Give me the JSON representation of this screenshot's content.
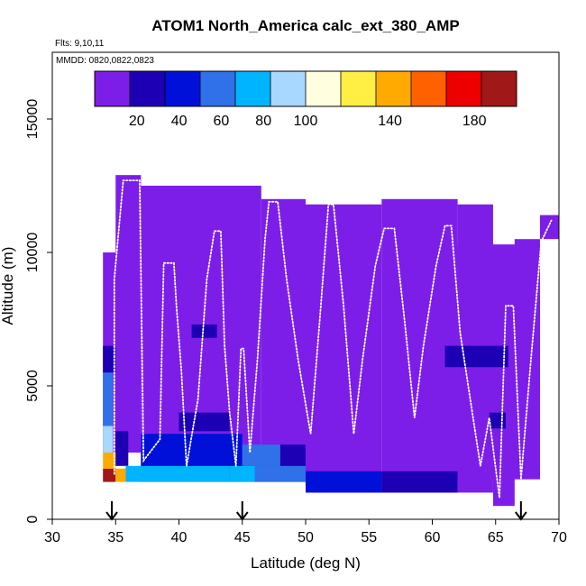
{
  "chart_data": {
    "type": "heatmap",
    "title": "ATOM1 North_America calc_ext_380_AMP",
    "subtitle_flights": "Flts: 9,10,11",
    "subtitle_dates": "MMDD: 0820,0822,0823",
    "xlabel": "Latitude (deg N)",
    "ylabel": "Altitude (m)",
    "xlim": [
      30,
      70
    ],
    "ylim": [
      0,
      17500
    ],
    "x_ticks": [
      30,
      35,
      40,
      45,
      50,
      55,
      60,
      65,
      70
    ],
    "y_ticks": [
      0,
      5000,
      10000,
      15000
    ],
    "colorbar": {
      "range": [
        0,
        200
      ],
      "tick_values": [
        20,
        40,
        60,
        80,
        100,
        140,
        180
      ],
      "colors": [
        "#7d1ee8",
        "#1d00b4",
        "#0010d8",
        "#3070e8",
        "#00b4ff",
        "#a8d8ff",
        "#ffffe0",
        "#ffee44",
        "#ffaa00",
        "#ff6000",
        "#ee0000",
        "#a01818"
      ]
    },
    "arrow_latitudes": [
      34.7,
      45,
      67
    ],
    "cells": [
      {
        "x": [
          34,
          35
        ],
        "y": [
          1400,
          1900
        ],
        "v": 195
      },
      {
        "x": [
          35,
          35.8
        ],
        "y": [
          1400,
          1900
        ],
        "v": 145
      },
      {
        "x": [
          34,
          35
        ],
        "y": [
          1900,
          2500
        ],
        "v": 145
      },
      {
        "x": [
          34,
          34.8
        ],
        "y": [
          2500,
          3500
        ],
        "v": 95
      },
      {
        "x": [
          34,
          34.8
        ],
        "y": [
          3500,
          5500
        ],
        "v": 65
      },
      {
        "x": [
          34,
          35
        ],
        "y": [
          5500,
          6500
        ],
        "v": 22
      },
      {
        "x": [
          35,
          36
        ],
        "y": [
          2000,
          3300
        ],
        "v": 20
      },
      {
        "x": [
          35.8,
          44
        ],
        "y": [
          1400,
          2000
        ],
        "v": 68
      },
      {
        "x": [
          44,
          46
        ],
        "y": [
          1400,
          2000
        ],
        "v": 82
      },
      {
        "x": [
          46,
          50
        ],
        "y": [
          1400,
          2000
        ],
        "v": 55
      },
      {
        "x": [
          50,
          56
        ],
        "y": [
          1000,
          1800
        ],
        "v": 40
      },
      {
        "x": [
          56,
          62
        ],
        "y": [
          1000,
          1800
        ],
        "v": 22
      },
      {
        "x": [
          37,
          45
        ],
        "y": [
          2000,
          3200
        ],
        "v": 48
      },
      {
        "x": [
          45,
          48
        ],
        "y": [
          2000,
          2800
        ],
        "v": 60
      },
      {
        "x": [
          48,
          50
        ],
        "y": [
          2000,
          2800
        ],
        "v": 30
      },
      {
        "x": [
          40,
          44
        ],
        "y": [
          3300,
          4000
        ],
        "v": 30
      },
      {
        "x": [
          41,
          43
        ],
        "y": [
          6800,
          7300
        ],
        "v": 20
      },
      {
        "x": [
          64.5,
          65.8
        ],
        "y": [
          3400,
          4000
        ],
        "v": 20
      },
      {
        "x": [
          61,
          66
        ],
        "y": [
          5700,
          6500
        ],
        "v": 30
      }
    ],
    "footprints": [
      {
        "x": [
          34,
          37
        ],
        "y": [
          2500,
          10000
        ]
      },
      {
        "x": [
          35,
          37
        ],
        "y": [
          10000,
          12900
        ]
      },
      {
        "x": [
          37,
          46.5
        ],
        "y": [
          1400,
          12500
        ]
      },
      {
        "x": [
          46.5,
          50
        ],
        "y": [
          1400,
          12000
        ]
      },
      {
        "x": [
          50,
          56
        ],
        "y": [
          1000,
          11800
        ]
      },
      {
        "x": [
          56,
          62
        ],
        "y": [
          1000,
          12000
        ]
      },
      {
        "x": [
          62,
          64.8
        ],
        "y": [
          1000,
          11800
        ]
      },
      {
        "x": [
          64.8,
          66.5
        ],
        "y": [
          500,
          7500
        ]
      },
      {
        "x": [
          62,
          68.5
        ],
        "y": [
          1500,
          10300
        ]
      },
      {
        "x": [
          66.5,
          68.5
        ],
        "y": [
          1500,
          10500
        ]
      },
      {
        "x": [
          68.5,
          70
        ],
        "y": [
          10500,
          11400
        ]
      }
    ],
    "flight_track": [
      [
        34.9,
        1700
      ],
      [
        34.9,
        9000
      ],
      [
        35.6,
        12700
      ],
      [
        36.9,
        12700
      ],
      [
        37.2,
        2200
      ],
      [
        38.5,
        3000
      ],
      [
        38.8,
        9600
      ],
      [
        39.6,
        9600
      ],
      [
        39.8,
        8000
      ],
      [
        40.2,
        5500
      ],
      [
        40.6,
        2000
      ],
      [
        41.5,
        4500
      ],
      [
        42.2,
        9000
      ],
      [
        42.8,
        10800
      ],
      [
        43.3,
        10800
      ],
      [
        43.6,
        6500
      ],
      [
        44.0,
        4000
      ],
      [
        44.5,
        2000
      ],
      [
        44.9,
        6400
      ],
      [
        45.1,
        6400
      ],
      [
        45.6,
        2500
      ],
      [
        46.2,
        6000
      ],
      [
        46.8,
        10500
      ],
      [
        47.1,
        11900
      ],
      [
        47.8,
        11900
      ],
      [
        48.5,
        9000
      ],
      [
        49.4,
        6000
      ],
      [
        50.4,
        3200
      ],
      [
        51.2,
        8000
      ],
      [
        51.8,
        11800
      ],
      [
        52.2,
        11800
      ],
      [
        53.0,
        8000
      ],
      [
        53.8,
        3200
      ],
      [
        54.5,
        6000
      ],
      [
        55.5,
        9500
      ],
      [
        56.2,
        10900
      ],
      [
        57.0,
        10900
      ],
      [
        57.8,
        7500
      ],
      [
        58.6,
        3800
      ],
      [
        59.3,
        6500
      ],
      [
        60.3,
        9500
      ],
      [
        61.0,
        11000
      ],
      [
        61.5,
        11000
      ],
      [
        62.2,
        7000
      ],
      [
        63.0,
        4500
      ],
      [
        63.8,
        2000
      ],
      [
        64.5,
        3800
      ],
      [
        65.3,
        800
      ],
      [
        65.8,
        8000
      ],
      [
        66.4,
        8000
      ],
      [
        67.0,
        1500
      ],
      [
        67.7,
        5500
      ],
      [
        68.6,
        10400
      ],
      [
        69.4,
        11200
      ]
    ]
  }
}
